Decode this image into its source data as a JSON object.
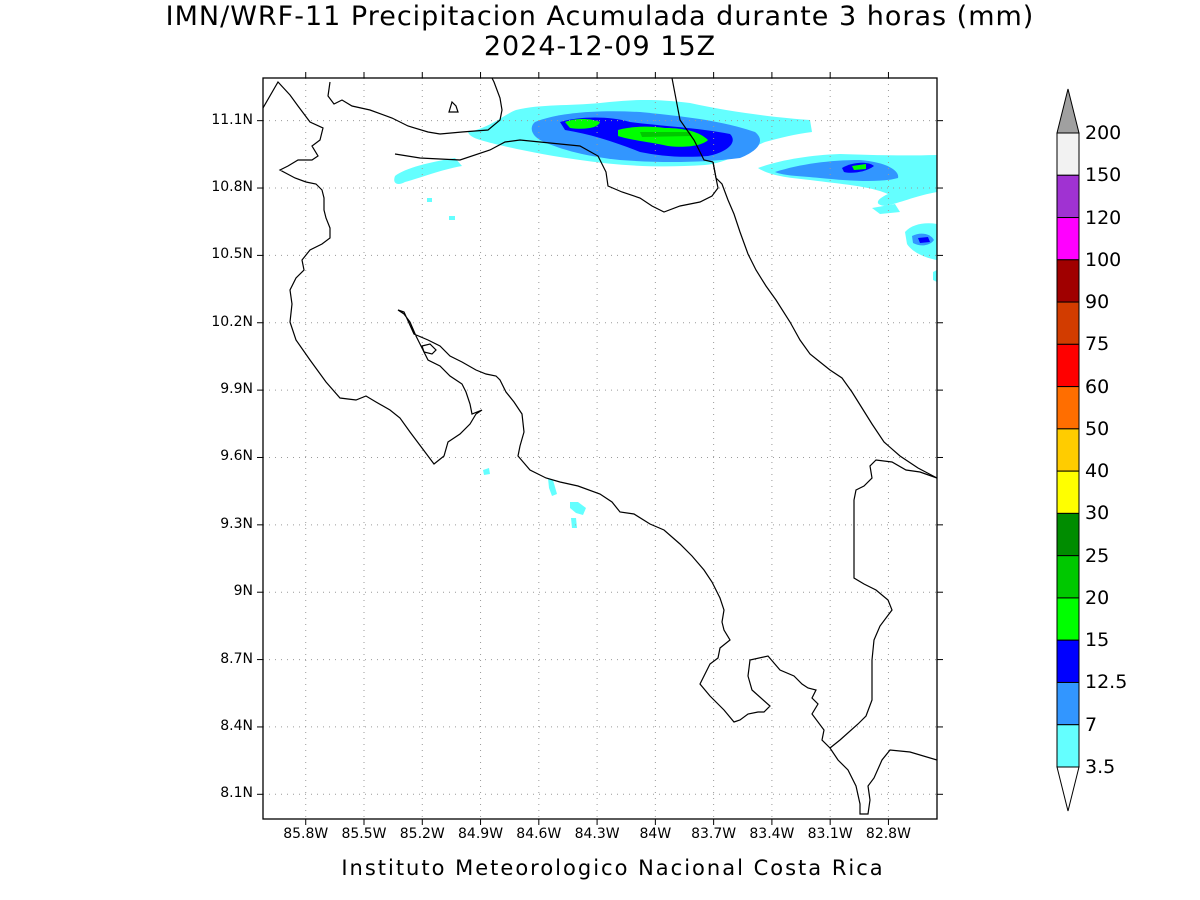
{
  "title": {
    "line1": "IMN/WRF-11 Precipitacion Acumulada durante 3 horas (mm)",
    "line2": "2024-12-09 15Z"
  },
  "credit": "Instituto Meteorologico Nacional Costa Rica",
  "map": {
    "lon_min": -86.02,
    "lon_max": -82.55,
    "lat_min": 7.99,
    "lat_max": 11.29,
    "grid": "dotted",
    "lat_ticks": [
      {
        "value": 11.1,
        "label": "11.1N"
      },
      {
        "value": 10.8,
        "label": "10.8N"
      },
      {
        "value": 10.5,
        "label": "10.5N"
      },
      {
        "value": 10.2,
        "label": "10.2N"
      },
      {
        "value": 9.9,
        "label": "9.9N"
      },
      {
        "value": 9.6,
        "label": "9.6N"
      },
      {
        "value": 9.3,
        "label": "9.3N"
      },
      {
        "value": 9.0,
        "label": "9N"
      },
      {
        "value": 8.7,
        "label": "8.7N"
      },
      {
        "value": 8.4,
        "label": "8.4N"
      },
      {
        "value": 8.1,
        "label": "8.1N"
      }
    ],
    "lon_ticks": [
      {
        "value": -85.8,
        "label": "85.8W"
      },
      {
        "value": -85.5,
        "label": "85.5W"
      },
      {
        "value": -85.2,
        "label": "85.2W"
      },
      {
        "value": -84.9,
        "label": "84.9W"
      },
      {
        "value": -84.6,
        "label": "84.6W"
      },
      {
        "value": -84.3,
        "label": "84.3W"
      },
      {
        "value": -84.0,
        "label": "84W"
      },
      {
        "value": -83.7,
        "label": "83.7W"
      },
      {
        "value": -83.4,
        "label": "83.4W"
      },
      {
        "value": -83.1,
        "label": "83.1W"
      },
      {
        "value": -82.8,
        "label": "82.8W"
      }
    ]
  },
  "colorbar": {
    "levels": [
      {
        "label": "200",
        "color": "#a0a0a0"
      },
      {
        "label": "150",
        "color": "#f2f2f2"
      },
      {
        "label": "120",
        "color": "#a032d2"
      },
      {
        "label": "100",
        "color": "#ff00ff"
      },
      {
        "label": "90",
        "color": "#a00000"
      },
      {
        "label": "75",
        "color": "#d23c00"
      },
      {
        "label": "60",
        "color": "#ff0000"
      },
      {
        "label": "50",
        "color": "#ff6e00"
      },
      {
        "label": "40",
        "color": "#ffcc00"
      },
      {
        "label": "30",
        "color": "#ffff00"
      },
      {
        "label": "25",
        "color": "#008c00"
      },
      {
        "label": "20",
        "color": "#00c800"
      },
      {
        "label": "15",
        "color": "#00ff00"
      },
      {
        "label": "12.5",
        "color": "#0000ff"
      },
      {
        "label": "7",
        "color": "#3296ff"
      },
      {
        "label": "3.5",
        "color": "#64ffff"
      }
    ],
    "lower_arrow_color": "#ffffff"
  },
  "colors": {
    "c3_5": "#64ffff",
    "c7": "#3296ff",
    "c12_5": "#0000ff",
    "c15": "#00ff00",
    "c20": "#00c800"
  }
}
